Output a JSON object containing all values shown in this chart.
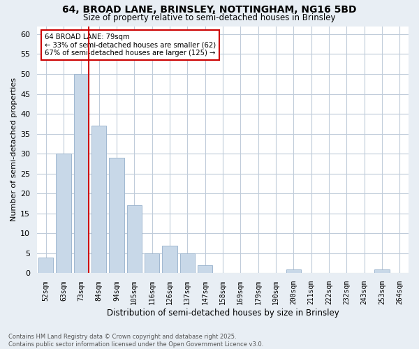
{
  "title_line1": "64, BROAD LANE, BRINSLEY, NOTTINGHAM, NG16 5BD",
  "title_line2": "Size of property relative to semi-detached houses in Brinsley",
  "xlabel": "Distribution of semi-detached houses by size in Brinsley",
  "ylabel": "Number of semi-detached properties",
  "categories": [
    "52sqm",
    "63sqm",
    "73sqm",
    "84sqm",
    "94sqm",
    "105sqm",
    "116sqm",
    "126sqm",
    "137sqm",
    "147sqm",
    "158sqm",
    "169sqm",
    "179sqm",
    "190sqm",
    "200sqm",
    "211sqm",
    "222sqm",
    "232sqm",
    "243sqm",
    "253sqm",
    "264sqm"
  ],
  "values": [
    4,
    30,
    50,
    37,
    29,
    17,
    5,
    7,
    5,
    2,
    0,
    0,
    0,
    0,
    1,
    0,
    0,
    0,
    0,
    1,
    0
  ],
  "bar_color": "#c8d8e8",
  "bar_edgecolor": "#a0b8d0",
  "ylim": [
    0,
    62
  ],
  "yticks": [
    0,
    5,
    10,
    15,
    20,
    25,
    30,
    35,
    40,
    45,
    50,
    55,
    60
  ],
  "property_bar_index": 2,
  "annotation_title": "64 BROAD LANE: 79sqm",
  "annotation_line1": "← 33% of semi-detached houses are smaller (62)",
  "annotation_line2": "67% of semi-detached houses are larger (125) →",
  "annotation_box_color": "#ffffff",
  "annotation_box_edgecolor": "#cc0000",
  "redline_color": "#cc0000",
  "footer_line1": "Contains HM Land Registry data © Crown copyright and database right 2025.",
  "footer_line2": "Contains public sector information licensed under the Open Government Licence v3.0.",
  "background_color": "#e8eef4",
  "plot_background": "#ffffff",
  "grid_color": "#c0ccda"
}
